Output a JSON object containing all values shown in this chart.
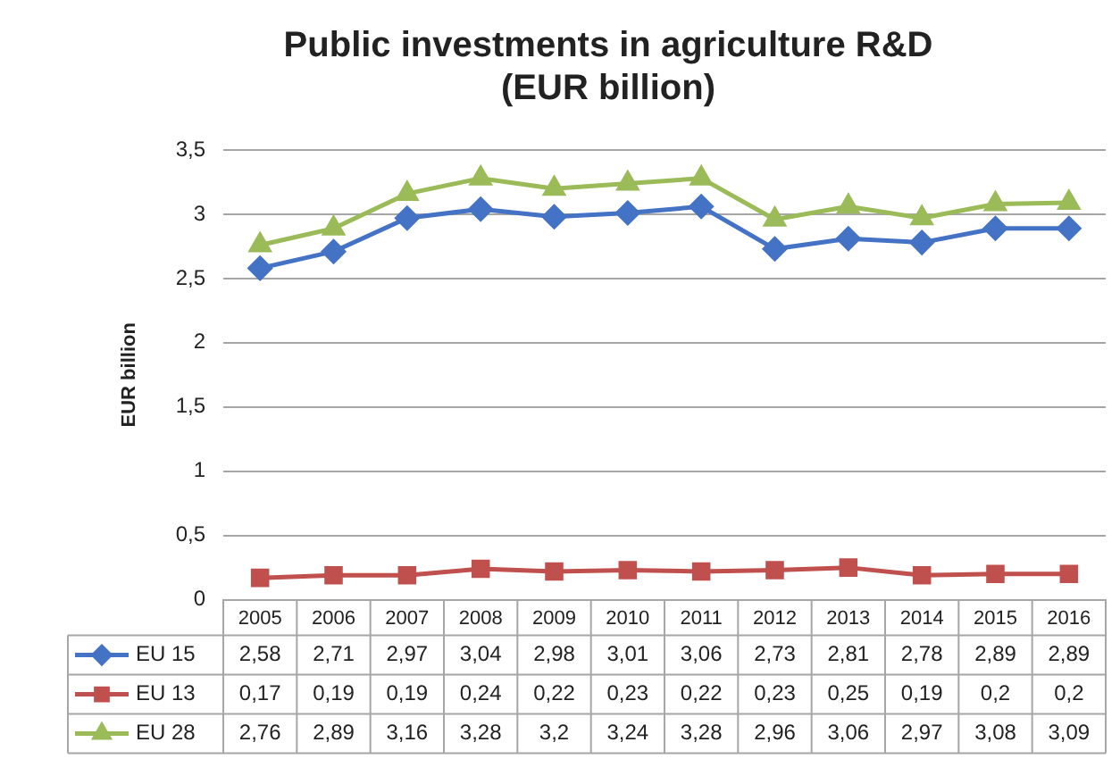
{
  "chart_data": {
    "type": "line",
    "title": "Public investments in agriculture R&D\n(EUR billion)",
    "ylabel": "EUR billion",
    "categories": [
      "2005",
      "2006",
      "2007",
      "2008",
      "2009",
      "2010",
      "2011",
      "2012",
      "2013",
      "2014",
      "2015",
      "2016"
    ],
    "series": [
      {
        "name": "EU 15",
        "color": "#4472c4",
        "marker": "diamond",
        "values": [
          2.58,
          2.71,
          2.97,
          3.04,
          2.98,
          3.01,
          3.06,
          2.73,
          2.81,
          2.78,
          2.89,
          2.89
        ],
        "value_labels": [
          "2,58",
          "2,71",
          "2,97",
          "3,04",
          "2,98",
          "3,01",
          "3,06",
          "2,73",
          "2,81",
          "2,78",
          "2,89",
          "2,89"
        ]
      },
      {
        "name": "EU 13",
        "color": "#c0504d",
        "marker": "square",
        "values": [
          0.17,
          0.19,
          0.19,
          0.24,
          0.22,
          0.23,
          0.22,
          0.23,
          0.25,
          0.19,
          0.2,
          0.2
        ],
        "value_labels": [
          "0,17",
          "0,19",
          "0,19",
          "0,24",
          "0,22",
          "0,23",
          "0,22",
          "0,23",
          "0,25",
          "0,19",
          "0,2",
          "0,2"
        ]
      },
      {
        "name": "EU 28",
        "color": "#9bbb59",
        "marker": "triangle",
        "values": [
          2.76,
          2.89,
          3.16,
          3.28,
          3.2,
          3.24,
          3.28,
          2.96,
          3.06,
          2.97,
          3.08,
          3.09
        ],
        "value_labels": [
          "2,76",
          "2,89",
          "3,16",
          "3,28",
          "3,2",
          "3,24",
          "3,28",
          "2,96",
          "3,06",
          "2,97",
          "3,08",
          "3,09"
        ]
      }
    ],
    "ylim": [
      0,
      3.5
    ],
    "yticks": [
      0,
      {
        "value": 0.5,
        "label": "0,5"
      },
      1,
      {
        "value": 1.5,
        "label": "1,5"
      },
      2,
      {
        "value": 2.5,
        "label": "2,5"
      },
      3,
      {
        "value": 3.5,
        "label": "3,5"
      }
    ],
    "grid": "y",
    "legend": "bottom"
  }
}
